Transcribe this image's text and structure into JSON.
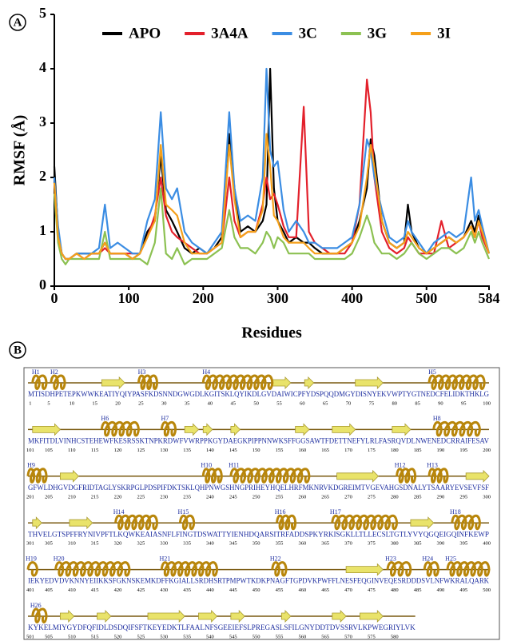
{
  "chart_data": {
    "type": "line",
    "panel_label": "A",
    "y_label": "RMSF (Å)",
    "x_label": "Residues",
    "xlim": [
      0,
      584
    ],
    "ylim": [
      0,
      5
    ],
    "xticks": [
      0,
      100,
      200,
      300,
      400,
      500,
      584
    ],
    "yticks": [
      0,
      1,
      2,
      3,
      4,
      5
    ],
    "grid": false,
    "legend": "top",
    "x": [
      0,
      5,
      10,
      15,
      20,
      30,
      40,
      50,
      60,
      68,
      75,
      85,
      95,
      105,
      115,
      125,
      135,
      143,
      150,
      158,
      165,
      175,
      185,
      195,
      205,
      215,
      225,
      235,
      242,
      250,
      260,
      270,
      280,
      285,
      290,
      295,
      300,
      308,
      315,
      325,
      335,
      342,
      350,
      360,
      370,
      380,
      390,
      400,
      410,
      420,
      425,
      430,
      440,
      450,
      460,
      470,
      475,
      480,
      490,
      500,
      510,
      520,
      530,
      540,
      550,
      560,
      565,
      570,
      575,
      584
    ],
    "series": [
      {
        "name": "APO",
        "color": "#000000",
        "values": [
          2.2,
          1.0,
          0.6,
          0.5,
          0.5,
          0.6,
          0.6,
          0.6,
          0.6,
          0.8,
          0.6,
          0.6,
          0.6,
          0.5,
          0.6,
          1.0,
          1.2,
          2.4,
          1.4,
          1.2,
          1.0,
          0.7,
          0.6,
          0.7,
          0.6,
          0.7,
          0.9,
          2.8,
          1.8,
          1.0,
          1.1,
          1.0,
          1.2,
          1.5,
          4.0,
          1.8,
          1.2,
          1.0,
          0.8,
          0.9,
          0.8,
          0.8,
          0.7,
          0.6,
          0.6,
          0.6,
          0.7,
          0.8,
          1.2,
          1.8,
          2.7,
          2.4,
          1.2,
          0.8,
          0.7,
          0.8,
          1.5,
          1.0,
          0.7,
          0.6,
          0.7,
          0.8,
          0.9,
          0.8,
          0.9,
          1.2,
          1.0,
          1.3,
          1.0,
          0.6
        ]
      },
      {
        "name": "3A4A",
        "color": "#e3202b",
        "values": [
          1.9,
          0.9,
          0.6,
          0.5,
          0.5,
          0.6,
          0.5,
          0.6,
          0.6,
          0.7,
          0.6,
          0.6,
          0.6,
          0.6,
          0.6,
          0.9,
          1.3,
          2.0,
          1.3,
          1.0,
          0.9,
          0.8,
          0.7,
          0.6,
          0.6,
          0.7,
          0.8,
          2.0,
          1.2,
          0.9,
          1.0,
          1.0,
          1.5,
          2.0,
          1.6,
          1.7,
          1.5,
          1.1,
          0.9,
          0.9,
          3.3,
          1.0,
          0.8,
          0.7,
          0.6,
          0.6,
          0.6,
          0.8,
          1.5,
          3.8,
          3.2,
          2.0,
          1.0,
          0.7,
          0.6,
          0.7,
          0.9,
          0.8,
          0.6,
          0.6,
          0.6,
          1.2,
          0.7,
          0.8,
          0.9,
          1.1,
          0.9,
          1.2,
          0.9,
          0.6
        ]
      },
      {
        "name": "3C",
        "color": "#3b8de3",
        "values": [
          2.0,
          1.1,
          0.6,
          0.5,
          0.5,
          0.6,
          0.6,
          0.6,
          0.7,
          1.5,
          0.7,
          0.8,
          0.7,
          0.6,
          0.6,
          1.2,
          1.6,
          3.2,
          1.8,
          1.6,
          1.8,
          1.0,
          0.8,
          0.7,
          0.6,
          0.8,
          1.0,
          3.2,
          1.8,
          1.2,
          1.3,
          1.2,
          2.0,
          4.0,
          2.5,
          2.2,
          2.3,
          1.4,
          1.0,
          1.2,
          1.0,
          0.8,
          0.8,
          0.7,
          0.7,
          0.7,
          0.8,
          0.9,
          1.5,
          2.7,
          2.5,
          2.0,
          1.4,
          0.9,
          0.8,
          0.9,
          1.2,
          1.0,
          0.8,
          0.6,
          0.8,
          0.9,
          1.0,
          0.9,
          1.0,
          2.0,
          1.2,
          1.4,
          1.1,
          0.6
        ]
      },
      {
        "name": "3G",
        "color": "#8cc152",
        "values": [
          1.7,
          0.8,
          0.5,
          0.4,
          0.5,
          0.5,
          0.5,
          0.5,
          0.5,
          1.0,
          0.5,
          0.5,
          0.5,
          0.5,
          0.5,
          0.4,
          0.8,
          1.8,
          0.6,
          0.5,
          0.7,
          0.4,
          0.5,
          0.5,
          0.5,
          0.6,
          0.7,
          1.4,
          0.9,
          0.7,
          0.7,
          0.6,
          0.8,
          1.0,
          0.9,
          0.7,
          0.9,
          0.8,
          0.6,
          0.6,
          0.6,
          0.6,
          0.5,
          0.5,
          0.5,
          0.5,
          0.5,
          0.6,
          0.9,
          1.3,
          1.1,
          0.8,
          0.6,
          0.6,
          0.5,
          0.6,
          0.7,
          0.8,
          0.6,
          0.5,
          0.6,
          0.7,
          0.7,
          0.6,
          0.7,
          1.0,
          0.8,
          1.0,
          0.8,
          0.5
        ]
      },
      {
        "name": "3I",
        "color": "#f5a01a",
        "values": [
          1.9,
          0.9,
          0.6,
          0.5,
          0.5,
          0.6,
          0.5,
          0.6,
          0.6,
          0.8,
          0.6,
          0.6,
          0.6,
          0.5,
          0.6,
          0.9,
          1.2,
          2.6,
          1.5,
          1.4,
          1.3,
          0.8,
          0.6,
          0.6,
          0.6,
          0.7,
          0.8,
          2.6,
          1.6,
          0.9,
          1.0,
          1.0,
          1.4,
          2.8,
          2.2,
          1.3,
          1.2,
          0.9,
          0.8,
          0.8,
          0.8,
          0.7,
          0.6,
          0.6,
          0.6,
          0.6,
          0.7,
          0.8,
          1.1,
          2.0,
          2.6,
          2.2,
          1.2,
          0.8,
          0.7,
          0.8,
          1.0,
          0.9,
          0.7,
          0.6,
          0.7,
          0.8,
          0.9,
          0.8,
          0.9,
          1.1,
          0.9,
          1.2,
          1.0,
          0.6
        ]
      }
    ]
  },
  "panel_b": {
    "panel_label": "B",
    "rows": [
      {
        "start": 1,
        "sequence": "MTISDHPETEPKWWKEATIYQIYPASFKDSNNDGWGDLKGITSKLQYIKDLGVDAIWICPFYDSPQQDMGYDISNYEKVWPTYGTNEDCFELIDKTHKLG",
        "ticks": [
          1,
          5,
          10,
          15,
          20,
          25,
          30,
          35,
          40,
          45,
          50,
          55,
          60,
          65,
          70,
          75,
          80,
          85,
          90,
          95,
          100
        ]
      },
      {
        "start": 101,
        "sequence": "MKFITDLVINHCSTEHEWFKESRSSKTNPKRDWFVWRPPKGYDAEGKPIPPNNWKSFFGGSAWTFDETTNEFYLRLFASRQVDLNWENEDCRRAIFESAV",
        "ticks": [
          101,
          105,
          110,
          115,
          120,
          125,
          130,
          135,
          140,
          145,
          150,
          155,
          160,
          165,
          170,
          175,
          180,
          185,
          190,
          195,
          200
        ]
      },
      {
        "start": 201,
        "sequence": "GFWLDHGVDGFRIDTAGLYSKRPGLPDSPIFDKTSKLQHPNWGSHNGPRIHEYHQELHRFMKNRVKDGREIMTVGEVAHGSDNALYTSAARYEVSEVFSF",
        "ticks": [
          201,
          205,
          210,
          215,
          220,
          225,
          230,
          235,
          240,
          245,
          250,
          255,
          260,
          265,
          270,
          275,
          280,
          285,
          290,
          295,
          300
        ]
      },
      {
        "start": 301,
        "sequence": "THVELGTSPFFRYNIVPFTLKQWKEAIASNFLFINGTDSWATTYIENHDQARSITRFADDSPKYRKISGKLLTLLECSLTGTLYVYQGQEIGQINFKEWP",
        "ticks": [
          301,
          305,
          310,
          315,
          320,
          325,
          330,
          335,
          340,
          345,
          350,
          355,
          360,
          365,
          370,
          375,
          380,
          385,
          390,
          395,
          400
        ]
      },
      {
        "start": 401,
        "sequence": "IEKYEDVDVKNNYEIIKKSFGKNSKEMKDFFKGIALLSRDHSRTPMPWTKDKPNAGFTGPDVKPWFFLNESFEQGINVEQESRDDDSVLNFWKRALQARK",
        "ticks": [
          401,
          405,
          410,
          415,
          420,
          425,
          430,
          435,
          440,
          445,
          450,
          455,
          460,
          465,
          470,
          475,
          480,
          485,
          490,
          495,
          500
        ]
      },
      {
        "start": 501,
        "sequence": "KYKELMIYGYDFQFIDLDSDQIFSFTKEYEDKTLFAALNFSGEEIEFSLPREGASLSFILGNYDDTDVSSRVLKPWEGRIYLVK",
        "ticks": [
          501,
          505,
          510,
          515,
          520,
          525,
          530,
          535,
          540,
          545,
          550,
          555,
          560,
          565,
          570,
          575,
          580
        ]
      }
    ],
    "helices": [
      {
        "label": "H1",
        "start": 2,
        "end": 4
      },
      {
        "label": "H2",
        "start": 6,
        "end": 8
      },
      {
        "label": "H3",
        "start": 25,
        "end": 28
      },
      {
        "label": "H4",
        "start": 39,
        "end": 53
      },
      {
        "label": "H5",
        "start": 88,
        "end": 99
      },
      {
        "label": "H6",
        "start": 117,
        "end": 124
      },
      {
        "label": "H7",
        "start": 130,
        "end": 132
      },
      {
        "label": "H8",
        "start": 189,
        "end": 198
      },
      {
        "label": "H9",
        "start": 201,
        "end": 204
      },
      {
        "label": "H10",
        "start": 239,
        "end": 242
      },
      {
        "label": "H11",
        "start": 245,
        "end": 261
      },
      {
        "label": "H12",
        "start": 281,
        "end": 284
      },
      {
        "label": "H13",
        "start": 288,
        "end": 291
      },
      {
        "label": "H14",
        "start": 320,
        "end": 328
      },
      {
        "label": "H15",
        "start": 334,
        "end": 336
      },
      {
        "label": "H16",
        "start": 355,
        "end": 358
      },
      {
        "label": "H17",
        "start": 367,
        "end": 380
      },
      {
        "label": "H18",
        "start": 393,
        "end": 398
      },
      {
        "label": "H19",
        "start": 401,
        "end": 402
      },
      {
        "label": "H20",
        "start": 407,
        "end": 422
      },
      {
        "label": "H21",
        "start": 430,
        "end": 441
      },
      {
        "label": "H22",
        "start": 454,
        "end": 456
      },
      {
        "label": "H23",
        "start": 479,
        "end": 483
      },
      {
        "label": "H24",
        "start": 487,
        "end": 489
      },
      {
        "label": "H25",
        "start": 492,
        "end": 500
      },
      {
        "label": "H26",
        "start": 502,
        "end": 504
      }
    ],
    "strands": [
      [
        17,
        21
      ],
      [
        54,
        57
      ],
      [
        61,
        62
      ],
      [
        72,
        77
      ],
      [
        102,
        107
      ],
      [
        135,
        137
      ],
      [
        139,
        140
      ],
      [
        145,
        146
      ],
      [
        159,
        161
      ],
      [
        167,
        171
      ],
      [
        180,
        183
      ],
      [
        208,
        211
      ],
      [
        268,
        276
      ],
      [
        296,
        300
      ],
      [
        302,
        303
      ],
      [
        310,
        314
      ],
      [
        384,
        388
      ],
      [
        470,
        477
      ],
      [
        508,
        510
      ],
      [
        516,
        518
      ],
      [
        527,
        534
      ],
      [
        538,
        541
      ],
      [
        545,
        547
      ],
      [
        556,
        557
      ],
      [
        567,
        569
      ],
      [
        573,
        577
      ]
    ]
  }
}
